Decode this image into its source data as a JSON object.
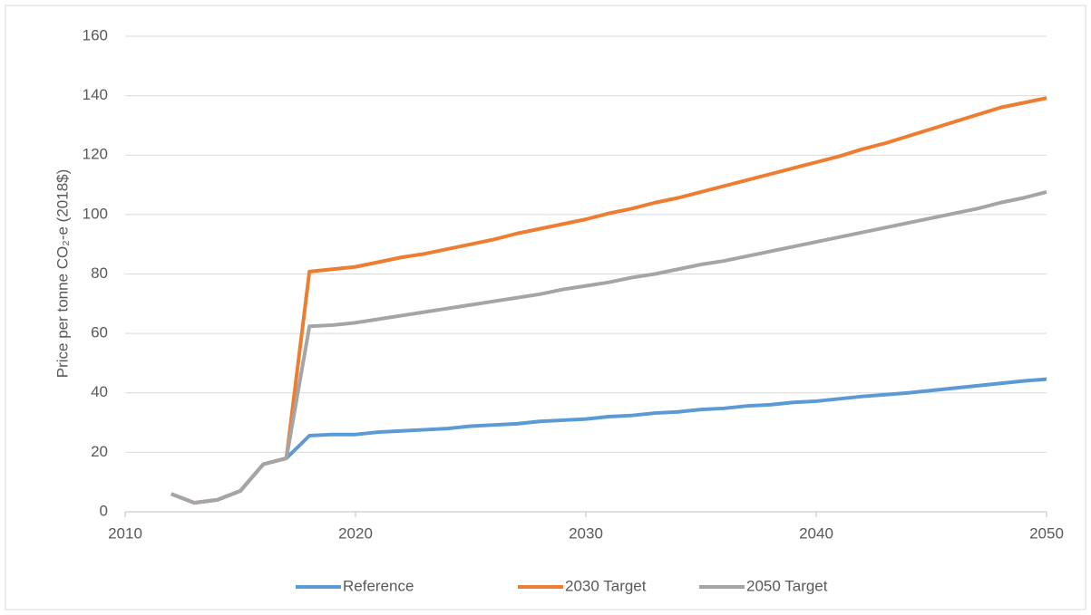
{
  "chart_data": {
    "type": "line",
    "y_label": "Price per tonne CO₂-e (2018$)",
    "x": [
      2012,
      2013,
      2014,
      2015,
      2016,
      2017,
      2018,
      2019,
      2020,
      2021,
      2022,
      2023,
      2024,
      2025,
      2026,
      2027,
      2028,
      2029,
      2030,
      2031,
      2032,
      2033,
      2034,
      2035,
      2036,
      2037,
      2038,
      2039,
      2040,
      2041,
      2042,
      2043,
      2044,
      2045,
      2046,
      2047,
      2048,
      2049,
      2050
    ],
    "series": [
      {
        "name": "Reference",
        "color": "#5b9bd5",
        "values": [
          6,
          3,
          4,
          7,
          16,
          18,
          25.6,
          26,
          26,
          26.8,
          27.2,
          27.6,
          28,
          28.8,
          29.2,
          29.6,
          30.4,
          30.8,
          31.2,
          32,
          32.4,
          33.2,
          33.6,
          34.4,
          34.8,
          35.6,
          36,
          36.8,
          37.2,
          38,
          38.8,
          39.4,
          40,
          40.8,
          41.6,
          42.4,
          43.2,
          44,
          44.6
        ]
      },
      {
        "name": "2030 Target",
        "color": "#ed7d31",
        "values": [
          6,
          3,
          4,
          7,
          16,
          18,
          80.8,
          81.6,
          82.4,
          84,
          85.6,
          86.8,
          88.4,
          90,
          91.6,
          93.6,
          95.2,
          96.8,
          98.4,
          100.4,
          102,
          104,
          105.6,
          107.6,
          109.6,
          111.6,
          113.6,
          115.6,
          117.6,
          119.6,
          122,
          124,
          126.4,
          128.8,
          131.2,
          133.6,
          136,
          137.6,
          139.2
        ]
      },
      {
        "name": "2050 Target",
        "color": "#a5a5a5",
        "values": [
          6,
          3,
          4,
          7,
          16,
          18,
          62.4,
          62.8,
          63.6,
          64.8,
          66,
          67.2,
          68.4,
          69.6,
          70.8,
          72,
          73.2,
          74.8,
          76,
          77.2,
          78.8,
          80,
          81.6,
          83.2,
          84.4,
          86,
          87.6,
          89.2,
          90.8,
          92.4,
          94,
          95.6,
          97.2,
          98.8,
          100.4,
          102,
          104,
          105.6,
          107.6
        ]
      }
    ],
    "xlim": [
      2010,
      2050
    ],
    "xticks": [
      2010,
      2020,
      2030,
      2040,
      2050
    ],
    "ylim": [
      0,
      160
    ],
    "yticks": [
      0,
      20,
      40,
      60,
      80,
      100,
      120,
      140,
      160
    ],
    "grid": true,
    "legend": "bottom"
  }
}
